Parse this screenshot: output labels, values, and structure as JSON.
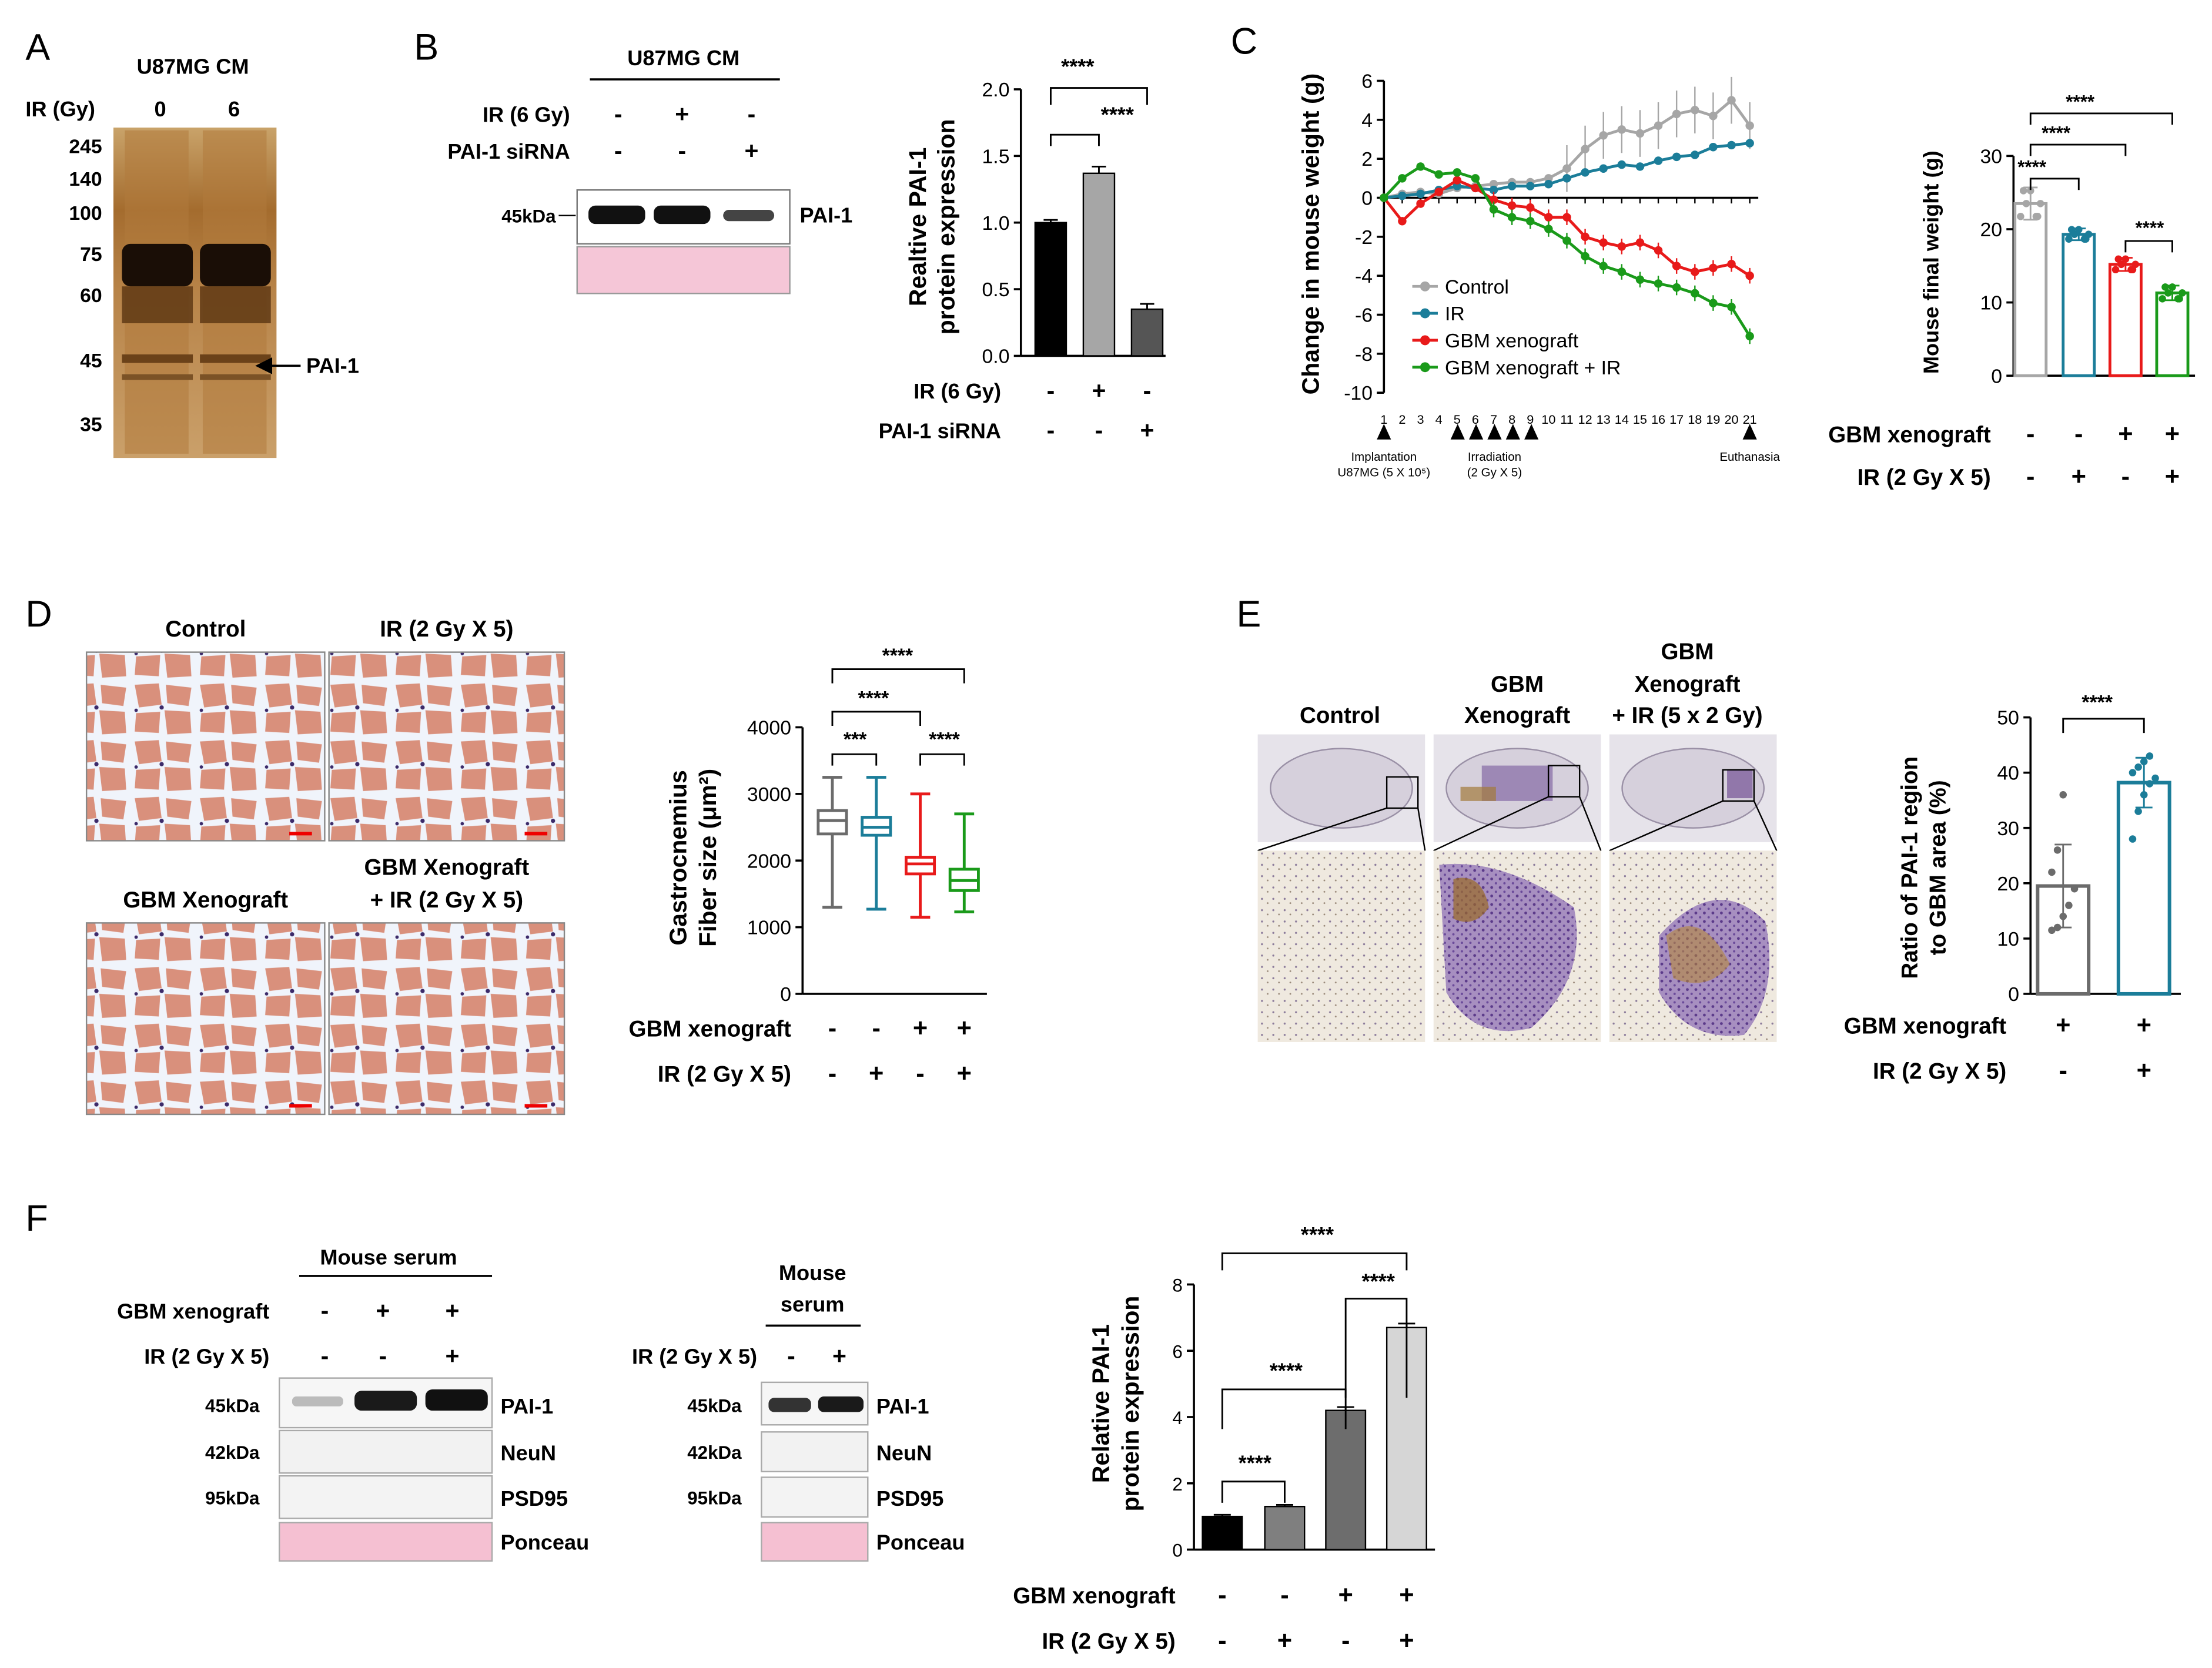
{
  "panelA": {
    "letter": "A",
    "title": "U87MG CM",
    "ir_label": "IR (Gy)",
    "lanes": [
      "0",
      "6"
    ],
    "markers": [
      "245",
      "140",
      "100",
      "75",
      "60",
      "45",
      "35"
    ],
    "arrow_label": "PAI-1"
  },
  "panelB": {
    "letter": "B",
    "title": "U87MG CM",
    "rows": [
      {
        "label": "IR (6 Gy)",
        "signs": [
          "-",
          "+",
          "-"
        ]
      },
      {
        "label": "PAI-1 siRNA",
        "signs": [
          "-",
          "-",
          "+"
        ]
      }
    ],
    "kda": "45kDa",
    "band_label": "PAI-1",
    "ylabel_1": "Realtive PAI-1",
    "ylabel_2": "protein expression",
    "sig_1": "****",
    "sig_2": "****",
    "colors": {
      "bar1": "#000000",
      "bar2": "#a6a6a6",
      "bar3": "#555555"
    }
  },
  "panelC": {
    "letter": "C",
    "ylabel": "Change in mouse weight (g)",
    "legend": [
      "Control",
      "IR",
      "GBM xenograft",
      "GBM xenograft + IR"
    ],
    "ann_impl_1": "Implantation",
    "ann_impl_2": "U87MG (5 X 10⁵)",
    "ann_irr_1": "Irradiation",
    "ann_irr_2": "(2 Gy X 5)",
    "ann_euth": "Euthanasia",
    "colors": {
      "control": "#a6a6a6",
      "ir": "#1b7d99",
      "gbm": "#e81a1a",
      "gbm_ir": "#1a9a1a"
    },
    "bar_ylabel": "Mouse final weight (g)",
    "bar_rows": [
      {
        "label": "GBM xenograft",
        "signs": [
          "-",
          "-",
          "+",
          "+"
        ]
      },
      {
        "label": "IR (2 Gy X 5)",
        "signs": [
          "-",
          "+",
          "-",
          "+"
        ]
      }
    ],
    "sig": [
      "****",
      "****",
      "****",
      "****"
    ]
  },
  "panelD": {
    "letter": "D",
    "image_titles": [
      "Control",
      "IR (2 Gy X 5)",
      "GBM Xenograft",
      "GBM Xenograft",
      "+ IR (2 Gy X 5)"
    ],
    "ylabel_1": "Gastrocnemius",
    "ylabel_2": "Fiber size (μm²)",
    "rows": [
      {
        "label": "GBM xenograft",
        "signs": [
          "-",
          "-",
          "+",
          "+"
        ]
      },
      {
        "label": "IR (2 Gy X 5)",
        "signs": [
          "-",
          "+",
          "-",
          "+"
        ]
      }
    ],
    "sig": [
      "****",
      "****",
      "***",
      "****"
    ]
  },
  "panelE": {
    "letter": "E",
    "col_titles": [
      "Control",
      "GBM",
      "Xenograft",
      "GBM",
      "Xenograft",
      "+ IR (5 x 2 Gy)"
    ],
    "ylabel_1": "Ratio of PAI-1 region",
    "ylabel_2": "to GBM area (%)",
    "rows": [
      {
        "label": "GBM xenograft",
        "signs": [
          "+",
          "+"
        ]
      },
      {
        "label": "IR (2 Gy X 5)",
        "signs": [
          "-",
          "+"
        ]
      }
    ],
    "sig": "****"
  },
  "panelF": {
    "letter": "F",
    "blot1_title": "Mouse serum",
    "blot1_rows": [
      {
        "label": "GBM xenograft",
        "signs": [
          "-",
          "+",
          "+"
        ]
      },
      {
        "label": "IR (2 Gy X 5)",
        "signs": [
          "-",
          "-",
          "+"
        ]
      }
    ],
    "blot2_title_1": "Mouse",
    "blot2_title_2": "serum",
    "blot2_row": {
      "label": "IR (2 Gy X 5)",
      "signs": [
        "-",
        "+"
      ]
    },
    "kda": [
      "45kDa",
      "42kDa",
      "95kDa"
    ],
    "bands": [
      "PAI-1",
      "NeuN",
      "PSD95",
      "Ponceau"
    ],
    "ylabel_1": "Relative PAI-1",
    "ylabel_2": "protein expression",
    "rows": [
      {
        "label": "GBM xenograft",
        "signs": [
          "-",
          "-",
          "+",
          "+"
        ]
      },
      {
        "label": "IR (2 Gy X 5)",
        "signs": [
          "-",
          "+",
          "-",
          "+"
        ]
      }
    ],
    "sig": [
      "****",
      "****",
      "****",
      "****"
    ]
  },
  "chart_data": [
    {
      "id": "B",
      "type": "bar",
      "categories": [
        "Control",
        "IR (6 Gy)",
        "PAI-1 siRNA"
      ],
      "values": [
        1.0,
        1.37,
        0.35
      ],
      "errors": [
        0.02,
        0.05,
        0.04
      ],
      "ylabel": "Realtive PAI-1 protein expression",
      "ylim": [
        0,
        2.0
      ],
      "yticks": [
        0.0,
        0.5,
        1.0,
        1.5,
        2.0
      ],
      "ytick_labels": [
        "0.0",
        "0.5",
        "1.0",
        "1.5",
        "2.0"
      ]
    },
    {
      "id": "C-line",
      "type": "line",
      "x": [
        1,
        2,
        3,
        4,
        5,
        6,
        7,
        8,
        9,
        10,
        11,
        12,
        13,
        14,
        15,
        16,
        17,
        18,
        19,
        20,
        21
      ],
      "xtick_labels": [
        "1",
        "2",
        "3",
        "4",
        "5",
        "6",
        "7",
        "8",
        "9",
        "10",
        "11",
        "12",
        "13",
        "14",
        "15",
        "16",
        "17",
        "18",
        "19",
        "20",
        "21"
      ],
      "ylabel": "Change in mouse weight (g)",
      "ylim": [
        -10,
        6
      ],
      "yticks": [
        6,
        4,
        2,
        0,
        -2,
        -4,
        -6,
        -8,
        -10
      ],
      "ytick_labels": [
        "6",
        "4",
        "2",
        "0",
        "-2",
        "-4",
        "-6",
        "-8",
        "-10"
      ],
      "series": [
        {
          "name": "Control",
          "values": [
            0,
            0.2,
            0.3,
            0.2,
            0.5,
            0.6,
            0.7,
            0.8,
            0.8,
            1.0,
            1.5,
            2.5,
            3.2,
            3.5,
            3.3,
            3.7,
            4.3,
            4.5,
            4.2,
            5.0,
            3.7
          ]
        },
        {
          "name": "IR",
          "values": [
            0,
            0.1,
            0.2,
            0.4,
            0.6,
            0.5,
            0.4,
            0.6,
            0.6,
            0.7,
            1.0,
            1.3,
            1.5,
            1.7,
            1.6,
            1.9,
            2.1,
            2.2,
            2.6,
            2.7,
            2.8
          ]
        },
        {
          "name": "GBM xenograft",
          "values": [
            0,
            -1.2,
            -0.3,
            0.3,
            0.9,
            0.5,
            -0.1,
            -0.4,
            -0.5,
            -1.0,
            -1.0,
            -2.0,
            -2.3,
            -2.5,
            -2.3,
            -2.7,
            -3.5,
            -3.8,
            -3.6,
            -3.4,
            -4.0
          ]
        },
        {
          "name": "GBM xenograft + IR",
          "values": [
            0,
            1.0,
            1.6,
            1.2,
            1.3,
            1.0,
            -0.6,
            -1.0,
            -1.2,
            -1.6,
            -2.2,
            -3.0,
            -3.5,
            -3.8,
            -4.2,
            -4.4,
            -4.6,
            -4.9,
            -5.4,
            -5.6,
            -7.1
          ]
        }
      ]
    },
    {
      "id": "C-bar",
      "type": "bar",
      "categories": [
        "Control",
        "IR",
        "GBM xenograft",
        "GBM xenograft + IR"
      ],
      "values": [
        23.5,
        19.3,
        15.2,
        11.3
      ],
      "errors": [
        2.2,
        0.8,
        0.9,
        1.0
      ],
      "ylabel": "Mouse final weight (g)",
      "ylim": [
        0,
        30
      ],
      "yticks": [
        0,
        10,
        20,
        30
      ],
      "ytick_labels": [
        "0",
        "10",
        "20",
        "30"
      ]
    },
    {
      "id": "D",
      "type": "box",
      "categories": [
        "Control",
        "IR",
        "GBM xenograft",
        "GBM xenograft + IR"
      ],
      "boxes": [
        {
          "min": 1300,
          "q1": 2400,
          "median": 2600,
          "q3": 2750,
          "max": 3250
        },
        {
          "min": 1270,
          "q1": 2380,
          "median": 2500,
          "q3": 2650,
          "max": 3250
        },
        {
          "min": 1150,
          "q1": 1800,
          "median": 1950,
          "q3": 2050,
          "max": 3000
        },
        {
          "min": 1230,
          "q1": 1550,
          "median": 1700,
          "q3": 1870,
          "max": 2700
        }
      ],
      "ylabel": "Gastrocnemius Fiber size (μm²)",
      "ylim": [
        0,
        4000
      ],
      "yticks": [
        0,
        1000,
        2000,
        3000,
        4000
      ],
      "ytick_labels": [
        "0",
        "1000",
        "2000",
        "3000",
        "4000"
      ]
    },
    {
      "id": "E",
      "type": "bar",
      "categories": [
        "GBM xenograft",
        "GBM xenograft + IR"
      ],
      "values": [
        19.5,
        38.2
      ],
      "errors": [
        7.5,
        4.5
      ],
      "points": [
        [
          11.5,
          12,
          14,
          16,
          19,
          22,
          26,
          36
        ],
        [
          28,
          33,
          36,
          38,
          39,
          40,
          41,
          42,
          43
        ]
      ],
      "ylabel": "Ratio of PAI-1 region to GBM area (%)",
      "ylim": [
        0,
        50
      ],
      "yticks": [
        0,
        10,
        20,
        30,
        40,
        50
      ],
      "ytick_labels": [
        "0",
        "10",
        "20",
        "30",
        "40",
        "50"
      ]
    },
    {
      "id": "F",
      "type": "bar",
      "categories": [
        "Control",
        "IR",
        "GBM xenograft",
        "GBM xenograft + IR"
      ],
      "values": [
        1.0,
        1.3,
        4.2,
        6.7
      ],
      "errors": [
        0.05,
        0.05,
        0.1,
        0.12
      ],
      "ylabel": "Relative PAI-1 protein expression",
      "ylim": [
        0,
        8
      ],
      "yticks": [
        0,
        2,
        4,
        6,
        8
      ],
      "ytick_labels": [
        "0",
        "2",
        "4",
        "6",
        "8"
      ]
    }
  ]
}
